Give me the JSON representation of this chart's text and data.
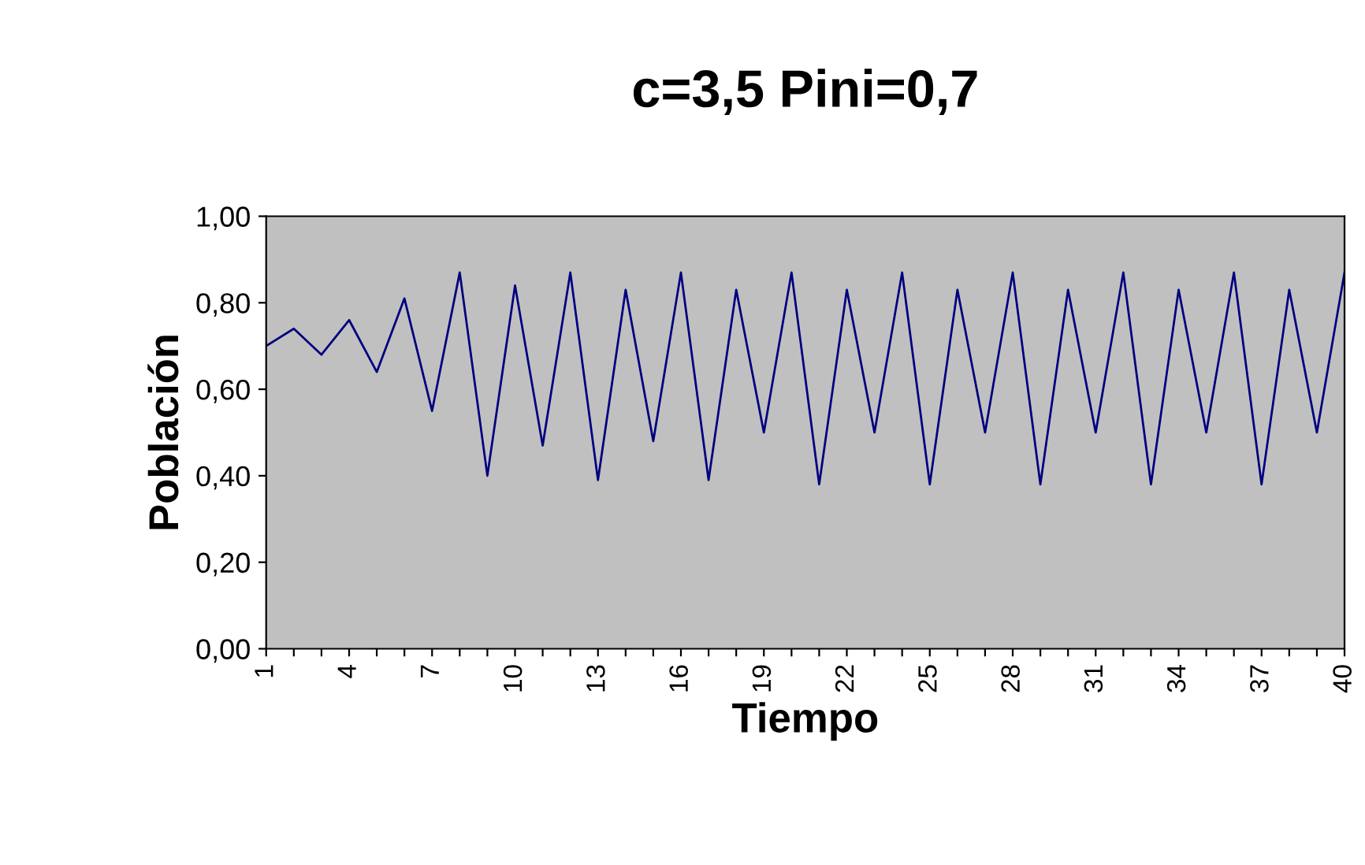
{
  "chart_data": {
    "type": "line",
    "title": "c=3,5 Pini=0,7",
    "xlabel": "Tiempo",
    "ylabel": "Población",
    "categories": [
      "1",
      null,
      null,
      "4",
      null,
      null,
      "7",
      null,
      null,
      "10",
      null,
      null,
      "13",
      null,
      null,
      "16",
      null,
      null,
      "19",
      null,
      null,
      "22",
      null,
      null,
      "25",
      null,
      null,
      "28",
      null,
      null,
      "31",
      null,
      null,
      "34",
      null,
      null,
      "37",
      null,
      null,
      "40"
    ],
    "series": [
      {
        "color": "#000080",
        "values": [
          0.7,
          0.74,
          0.68,
          0.76,
          0.64,
          0.81,
          0.55,
          0.87,
          0.4,
          0.84,
          0.47,
          0.87,
          0.39,
          0.83,
          0.48,
          0.87,
          0.39,
          0.83,
          0.5,
          0.87,
          0.38,
          0.83,
          0.5,
          0.87,
          0.38,
          0.83,
          0.5,
          0.87,
          0.38,
          0.83,
          0.5,
          0.87,
          0.38,
          0.83,
          0.5,
          0.87,
          0.38,
          0.83,
          0.5,
          0.87
        ]
      }
    ],
    "ylim": [
      0,
      1
    ],
    "yticks": [
      {
        "value": 0,
        "label": "0,00"
      },
      {
        "value": 0.2,
        "label": "0,20"
      },
      {
        "value": 0.4,
        "label": "0,40"
      },
      {
        "value": 0.6,
        "label": "0,60"
      },
      {
        "value": 0.8,
        "label": "0,80"
      },
      {
        "value": 1,
        "label": "1,00"
      }
    ],
    "grid": false,
    "legend": false,
    "marker": "none",
    "line_style": "solid"
  }
}
